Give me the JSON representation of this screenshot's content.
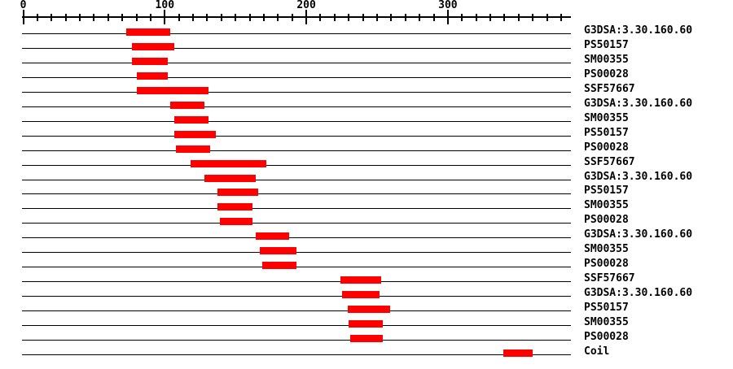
{
  "chart_data": {
    "type": "bar",
    "variant": "horizontal-range-bars (protein sequence feature plot)",
    "title": "",
    "xlabel": "",
    "ylabel": "",
    "axis": {
      "min": 0,
      "max": 387,
      "major_ticks": [
        0,
        100,
        200,
        300
      ],
      "minor_tick_step": 10,
      "last_minor_tick": 380,
      "grid": false
    },
    "colors": {
      "bar": "#ff0000",
      "axis": "#000000",
      "text": "#000000",
      "background": "#ffffff"
    },
    "legend_position": "right-of-each-row",
    "rows": [
      {
        "label": "G3DSA:3.30.160.60",
        "start": 73,
        "end": 104
      },
      {
        "label": "PS50157",
        "start": 77,
        "end": 107
      },
      {
        "label": "SM00355",
        "start": 77,
        "end": 102
      },
      {
        "label": "PS00028",
        "start": 80,
        "end": 102
      },
      {
        "label": "SSF57667",
        "start": 80,
        "end": 131
      },
      {
        "label": "G3DSA:3.30.160.60",
        "start": 104,
        "end": 128
      },
      {
        "label": "SM00355",
        "start": 107,
        "end": 131
      },
      {
        "label": "PS50157",
        "start": 107,
        "end": 136
      },
      {
        "label": "PS00028",
        "start": 108,
        "end": 132
      },
      {
        "label": "SSF57667",
        "start": 118,
        "end": 172
      },
      {
        "label": "G3DSA:3.30.160.60",
        "start": 128,
        "end": 164
      },
      {
        "label": "PS50157",
        "start": 137,
        "end": 166
      },
      {
        "label": "SM00355",
        "start": 137,
        "end": 162
      },
      {
        "label": "PS00028",
        "start": 139,
        "end": 162
      },
      {
        "label": "G3DSA:3.30.160.60",
        "start": 164,
        "end": 188
      },
      {
        "label": "SM00355",
        "start": 167,
        "end": 193
      },
      {
        "label": "PS00028",
        "start": 169,
        "end": 193
      },
      {
        "label": "SSF57667",
        "start": 224,
        "end": 253
      },
      {
        "label": "G3DSA:3.30.160.60",
        "start": 225,
        "end": 252
      },
      {
        "label": "PS50157",
        "start": 229,
        "end": 259
      },
      {
        "label": "SM00355",
        "start": 230,
        "end": 254
      },
      {
        "label": "PS00028",
        "start": 231,
        "end": 254
      },
      {
        "label": "Coil",
        "start": 339,
        "end": 360
      }
    ]
  }
}
